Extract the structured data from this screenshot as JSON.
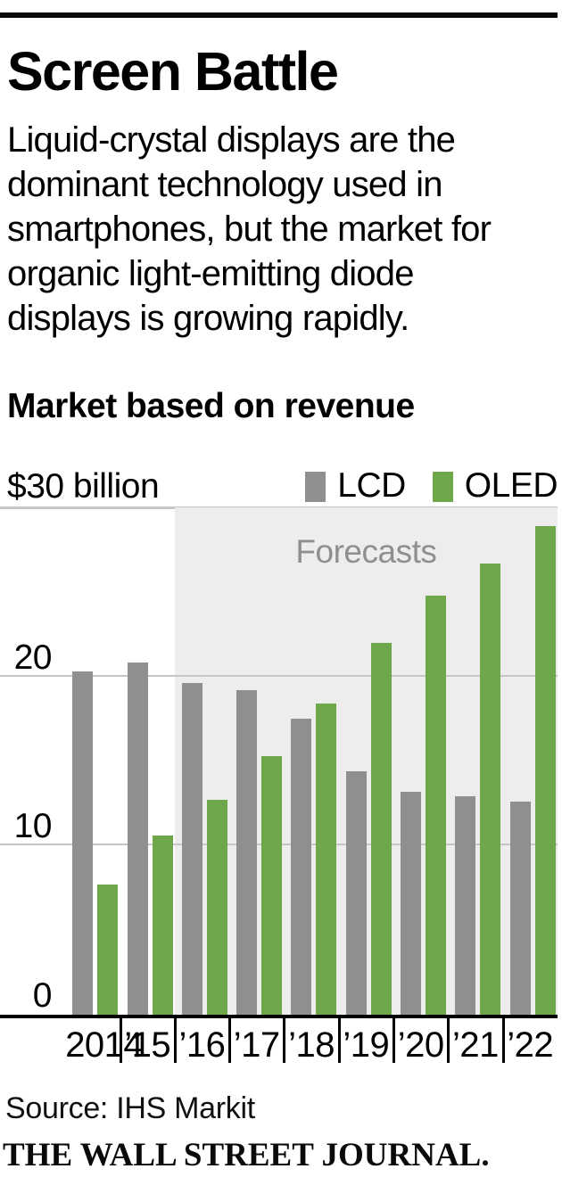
{
  "header": {
    "title": "Screen Battle",
    "intro_lines": [
      "Liquid-crystal displays are the",
      "dominant technology used in",
      "smartphones, but the market for",
      "organic light-emitting diode",
      "displays is growing rapidly."
    ]
  },
  "chart": {
    "subtitle": "Market based on revenue",
    "axis_unit_label": "$30 billion",
    "forecast_label": "Forecasts",
    "legend": [
      {
        "label": "LCD",
        "color": "#8f8f8f"
      },
      {
        "label": "OLED",
        "color": "#6fa84a"
      }
    ],
    "y_tick_labels": [
      "20",
      "10",
      "0"
    ],
    "x_labels": [
      "2014",
      "’15",
      "’16",
      "’17",
      "’18",
      "’19",
      "’20",
      "’21",
      "’22"
    ]
  },
  "chart_data": {
    "type": "bar",
    "title": "Market based on revenue",
    "y_unit": "$ billion",
    "categories": [
      2014,
      2015,
      2016,
      2017,
      2018,
      2019,
      2020,
      2021,
      2022
    ],
    "series": [
      {
        "name": "LCD",
        "color": "#8f8f8f",
        "values": [
          20.3,
          20.8,
          19.6,
          19.2,
          17.5,
          14.4,
          13.2,
          12.9,
          12.6
        ]
      },
      {
        "name": "OLED",
        "color": "#6fa84a",
        "values": [
          7.7,
          10.6,
          12.7,
          15.3,
          18.4,
          22.0,
          24.8,
          26.7,
          28.9
        ]
      }
    ],
    "ylim": [
      0,
      30
    ],
    "gridlines": [
      10,
      20,
      30
    ],
    "grid": true,
    "legend_position": "top-right",
    "forecast_start_year": 2016,
    "annotations": [
      "Forecasts"
    ]
  },
  "footer": {
    "source": "Source: IHS Markit",
    "brand": "THE WALL STREET JOURNAL."
  }
}
